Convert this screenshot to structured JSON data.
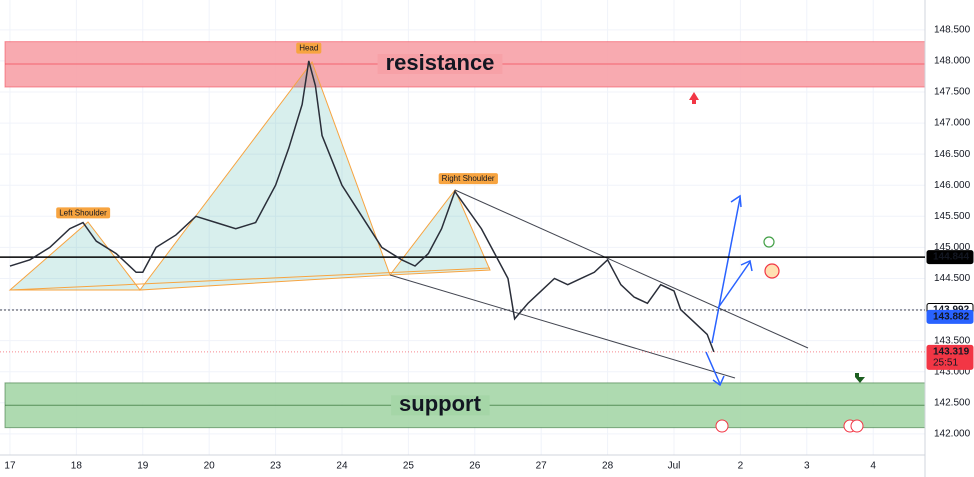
{
  "chart_data": {
    "type": "line",
    "color": "#2a2e39",
    "xlim": [
      -0.15,
      13.78
    ],
    "ylim": [
      141.66,
      148.98
    ],
    "xticks": [
      {
        "value": 0,
        "label": "17"
      },
      {
        "value": 1,
        "label": "18"
      },
      {
        "value": 2,
        "label": "19"
      },
      {
        "value": 3,
        "label": "20"
      },
      {
        "value": 4,
        "label": "23"
      },
      {
        "value": 5,
        "label": "24"
      },
      {
        "value": 6,
        "label": "25"
      },
      {
        "value": 7,
        "label": "26"
      },
      {
        "value": 8,
        "label": "27"
      },
      {
        "value": 9,
        "label": "28"
      },
      {
        "value": 10,
        "label": "Jul"
      },
      {
        "value": 11,
        "label": "2"
      },
      {
        "value": 12,
        "label": "3"
      },
      {
        "value": 13,
        "label": "4"
      }
    ],
    "yticks": [
      {
        "value": 142,
        "label": "142.000"
      },
      {
        "value": 142.5,
        "label": "142.500"
      },
      {
        "value": 143,
        "label": "143.000"
      },
      {
        "value": 143.5,
        "label": "143.500"
      },
      {
        "value": 144,
        "label": "144.000"
      },
      {
        "value": 144.5,
        "label": "144.500"
      },
      {
        "value": 145,
        "label": "145.000"
      },
      {
        "value": 145.5,
        "label": "145.500"
      },
      {
        "value": 146,
        "label": "146.000"
      },
      {
        "value": 146.5,
        "label": "146.500"
      },
      {
        "value": 147,
        "label": "147.000"
      },
      {
        "value": 147.5,
        "label": "147.500"
      },
      {
        "value": 148,
        "label": "148.000"
      },
      {
        "value": 148.5,
        "label": "148.500"
      }
    ],
    "x": [
      0.0,
      0.3,
      0.6,
      0.9,
      1.1,
      1.3,
      1.6,
      1.9,
      2.0,
      2.2,
      2.5,
      2.8,
      3.1,
      3.4,
      3.7,
      4.0,
      4.2,
      4.4,
      4.5,
      4.6,
      4.7,
      5.0,
      5.3,
      5.6,
      5.9,
      6.1,
      6.3,
      6.5,
      6.7,
      6.9,
      7.1,
      7.3,
      7.5,
      7.6,
      7.8,
      8.0,
      8.2,
      8.4,
      8.6,
      8.8,
      9.0,
      9.2,
      9.4,
      9.6,
      9.8,
      10.0,
      10.1,
      10.3,
      10.5,
      10.6
    ],
    "values": [
      144.7,
      144.8,
      145.0,
      145.3,
      145.4,
      145.1,
      144.9,
      144.6,
      144.6,
      145.0,
      145.2,
      145.5,
      145.4,
      145.3,
      145.4,
      146.0,
      146.6,
      147.3,
      148.0,
      147.6,
      146.8,
      146.0,
      145.5,
      145.0,
      144.8,
      144.7,
      144.9,
      145.3,
      145.9,
      145.6,
      145.3,
      144.9,
      144.5,
      143.85,
      144.1,
      144.3,
      144.5,
      144.4,
      144.5,
      144.6,
      144.8,
      144.4,
      144.2,
      144.1,
      144.4,
      144.3,
      144.0,
      143.8,
      143.6,
      143.32
    ],
    "zones": [
      {
        "label": "resistance",
        "from": 147.58,
        "to": 148.31,
        "level": 147.95,
        "color": "#f7a1a7",
        "text_color": "#f23645"
      },
      {
        "label": "support",
        "from": 142.1,
        "to": 142.82,
        "level": 142.46,
        "color": "#a5d6a7",
        "text_color": "#1b5e20"
      }
    ],
    "annotations": [
      {
        "label": "Left Shoulder",
        "x": 1.1,
        "y": 145.55
      },
      {
        "label": "Head",
        "x": 4.5,
        "y": 148.2
      },
      {
        "label": "Right Shoulder",
        "x": 6.9,
        "y": 146.1
      }
    ],
    "price_labels": [
      {
        "value": 144.844,
        "label": "144.844",
        "color": "#000000",
        "text_color": "#ffffff"
      },
      {
        "value": 143.992,
        "label": "143.992",
        "color": "#ffffff",
        "text_color": "#000000"
      },
      {
        "value": 143.882,
        "label": "143.882",
        "color": "#2962ff",
        "text_color": "#ffffff"
      },
      {
        "value": 143.319,
        "label": "143.319",
        "color": "#f23645",
        "text_color": "#ffffff",
        "countdown": "25:51"
      }
    ]
  }
}
